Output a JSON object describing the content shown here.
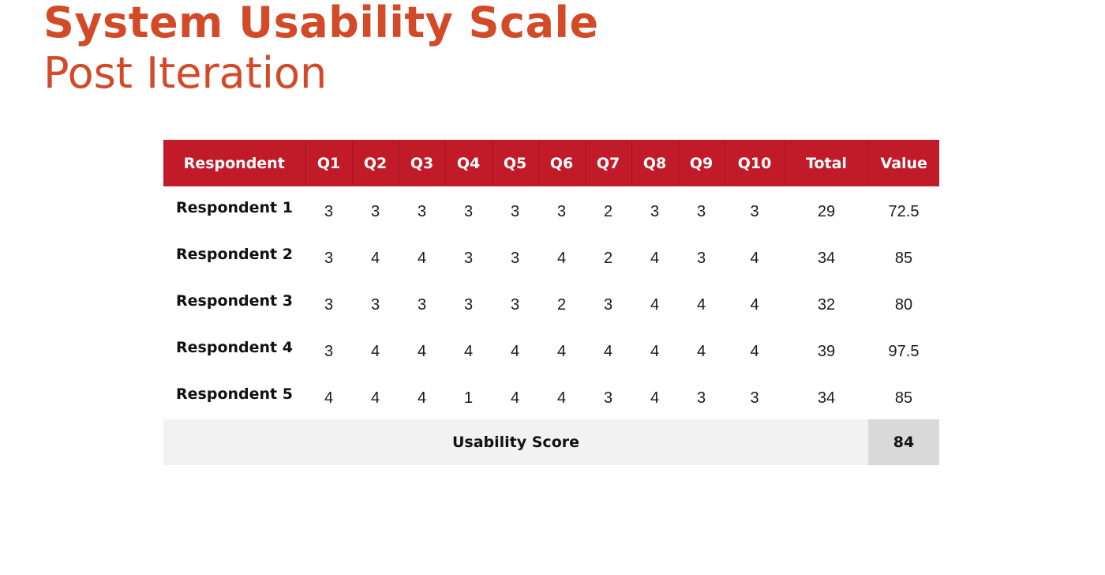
{
  "title": "System Usability Scale",
  "subtitle": "Post Iteration",
  "colors": {
    "accent": "#d24a28",
    "header_bg": "#c11b2a",
    "footer_bg": "#f2f2f2",
    "score_bg": "#d9d9d9"
  },
  "table": {
    "headers": [
      "Respondent",
      "Q1",
      "Q2",
      "Q3",
      "Q4",
      "Q5",
      "Q6",
      "Q7",
      "Q8",
      "Q9",
      "Q10",
      "Total",
      "Value"
    ],
    "rows": [
      {
        "name": "Respondent 1",
        "answers": [
          "3",
          "3",
          "3",
          "3",
          "3",
          "3",
          "2",
          "3",
          "3",
          "3"
        ],
        "total": "29",
        "value": "72.5"
      },
      {
        "name": "Respondent 2",
        "answers": [
          "3",
          "4",
          "4",
          "3",
          "3",
          "4",
          "2",
          "4",
          "3",
          "4"
        ],
        "total": "34",
        "value": "85"
      },
      {
        "name": "Respondent 3",
        "answers": [
          "3",
          "3",
          "3",
          "3",
          "3",
          "2",
          "3",
          "4",
          "4",
          "4"
        ],
        "total": "32",
        "value": "80"
      },
      {
        "name": "Respondent 4",
        "answers": [
          "3",
          "4",
          "4",
          "4",
          "4",
          "4",
          "4",
          "4",
          "4",
          "4"
        ],
        "total": "39",
        "value": "97.5"
      },
      {
        "name": "Respondent 5",
        "answers": [
          "4",
          "4",
          "4",
          "1",
          "4",
          "4",
          "3",
          "4",
          "3",
          "3"
        ],
        "total": "34",
        "value": "85"
      }
    ],
    "footer": {
      "label": "Usability Score",
      "score": "84"
    }
  }
}
